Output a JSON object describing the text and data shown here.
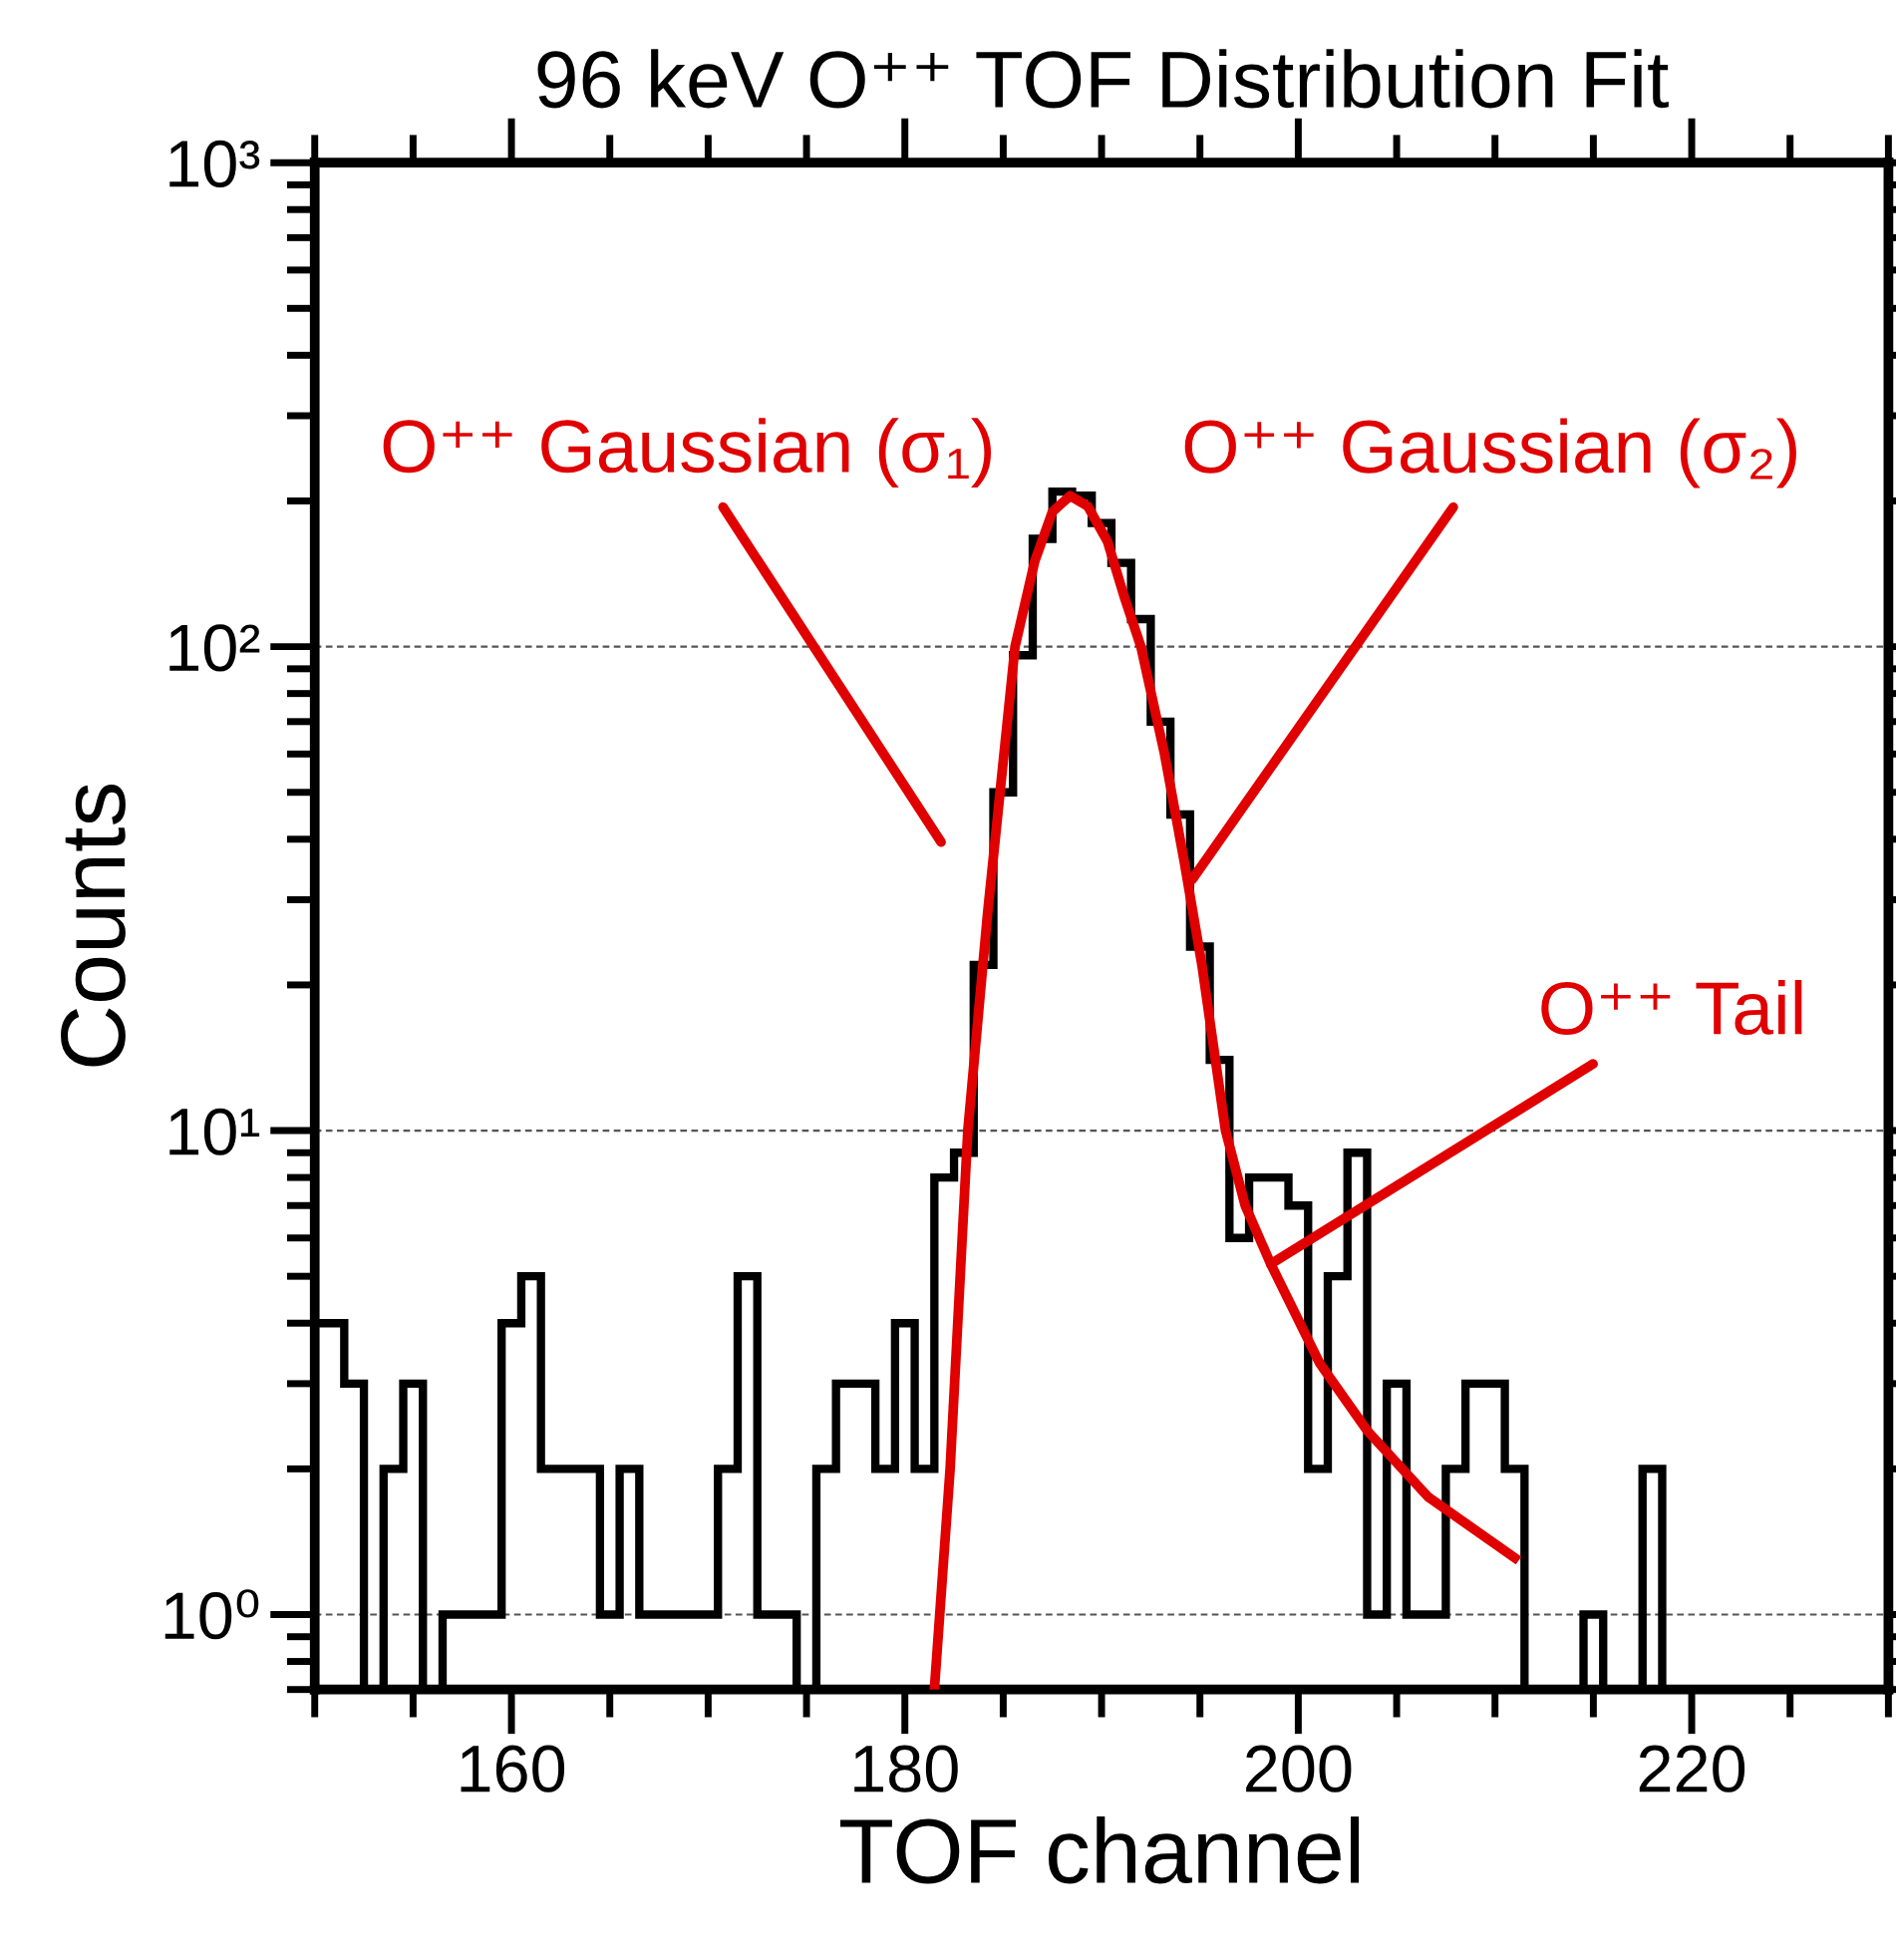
{
  "chart_data": {
    "type": "histogram",
    "title": "96 keV O⁺⁺ TOF Distribution Fit",
    "xlabel": "TOF channel",
    "ylabel": "Counts",
    "bins": [
      149.5,
      150.5,
      151.5,
      152.5,
      153.5,
      154.5,
      155.5,
      156.5,
      157.5,
      158.5,
      159.5,
      160.5,
      161.5,
      162.5,
      163.5,
      164.5,
      165.5,
      166.5,
      167.5,
      168.5,
      169.5,
      170.5,
      171.5,
      172.5,
      173.5,
      174.5,
      175.5,
      176.5,
      177.5,
      178.5,
      179.5,
      180.5,
      181.5,
      182.5,
      183.5,
      184.5,
      185.5,
      186.5,
      187.5,
      188.5,
      189.5,
      190.5,
      191.5,
      192.5,
      193.5,
      194.5,
      195.5,
      196.5,
      197.5,
      198.5,
      199.5,
      200.5,
      201.5,
      202.5,
      203.5,
      204.5,
      205.5,
      206.5,
      207.5,
      208.5,
      209.5,
      210.5,
      211.5,
      212.5,
      213.5,
      214.5,
      215.5,
      216.5,
      217.5,
      218.5,
      219.5
    ],
    "values": [
      4,
      4,
      3,
      null,
      2,
      3,
      null,
      1,
      1,
      1,
      4,
      5,
      2,
      2,
      2,
      1,
      2,
      1,
      1,
      1,
      1,
      2,
      5,
      1,
      1,
      null,
      2,
      3,
      3,
      2,
      4,
      2,
      8,
      9,
      22,
      50,
      96,
      167,
      209,
      205,
      180,
      149,
      114,
      70,
      45,
      24,
      14,
      6,
      8,
      8,
      7,
      2,
      5,
      9,
      1,
      3,
      1,
      1,
      2,
      3,
      3,
      2,
      null,
      null,
      null,
      1,
      null,
      null,
      2,
      null
    ],
    "color": "#000000",
    "series": [
      {
        "type": "line",
        "color": "#e00000",
        "x": [
          181.5,
          182.3,
          183.2,
          184.2,
          185.6,
          186.6,
          187.5,
          188.4,
          189.3,
          190.3,
          191.2,
          192.0,
          193.2,
          194.2,
          195.1,
          196.3,
          197.3,
          198.6,
          201.1,
          203.5,
          206.6,
          211.0
        ],
        "values": [
          0.7,
          2,
          10,
          28,
          100,
          150,
          190,
          205,
          195,
          165,
          125,
          100,
          60,
          36,
          22,
          10,
          7,
          5.3,
          3.3,
          2.4,
          1.75,
          1.31
        ]
      }
    ],
    "annotations": [
      "O⁺⁺ Gaussian (σ₁)",
      {
        "text": "O⁺⁺ Gaussian (σ₂)",
        "x": 194.6,
        "y": 33
      },
      {
        "text": "O⁺⁺ Tail",
        "x": 198.6,
        "y": 5.3
      }
    ],
    "log": "y",
    "grid": "y",
    "xlim": [
      150,
      230
    ],
    "ylim": [
      0.7,
      1000
    ],
    "xticks": [
      160,
      180,
      200,
      220
    ],
    "yticks": [
      {
        "value": 1,
        "label": "10⁰"
      },
      {
        "value": 10,
        "label": "10¹"
      },
      {
        "value": 100,
        "label": "10²"
      },
      {
        "value": 1000,
        "label": "10³"
      }
    ]
  }
}
